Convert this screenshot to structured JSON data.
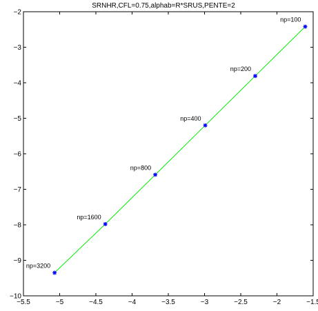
{
  "chart_data": {
    "type": "line",
    "title": "SRNHR,CFL=0.75,alphab=R*SRUS,PENTE=2",
    "xlabel": "",
    "ylabel": "",
    "xlim": [
      -5.5,
      -1.5
    ],
    "ylim": [
      -10,
      -2
    ],
    "x_ticks": [
      -5.5,
      -5,
      -4.5,
      -4,
      -3.5,
      -3,
      -2.5,
      -2,
      -1.5
    ],
    "x_tick_labels": [
      "−5.5",
      "−5",
      "−4.5",
      "−4",
      "−3.5",
      "−3",
      "−2.5",
      "−2",
      "−1.5"
    ],
    "y_ticks": [
      -10,
      -9,
      -8,
      -7,
      -6,
      -5,
      -4,
      -3,
      -2
    ],
    "y_tick_labels": [
      "−10",
      "−9",
      "−8",
      "−7",
      "−6",
      "−5",
      "−4",
      "−3",
      "−2"
    ],
    "grid": false,
    "line_color": "#00ee00",
    "marker_color": "#0000ff",
    "series": [
      {
        "x": [
          -5.07,
          -4.37,
          -3.68,
          -2.99,
          -2.3,
          -1.61
        ],
        "y": [
          -9.35,
          -7.98,
          -6.59,
          -5.2,
          -3.81,
          -2.42
        ],
        "point_labels": [
          "np=3200",
          "np=1600",
          "np=800",
          "np=400",
          "np=200",
          "np=100"
        ]
      }
    ]
  }
}
